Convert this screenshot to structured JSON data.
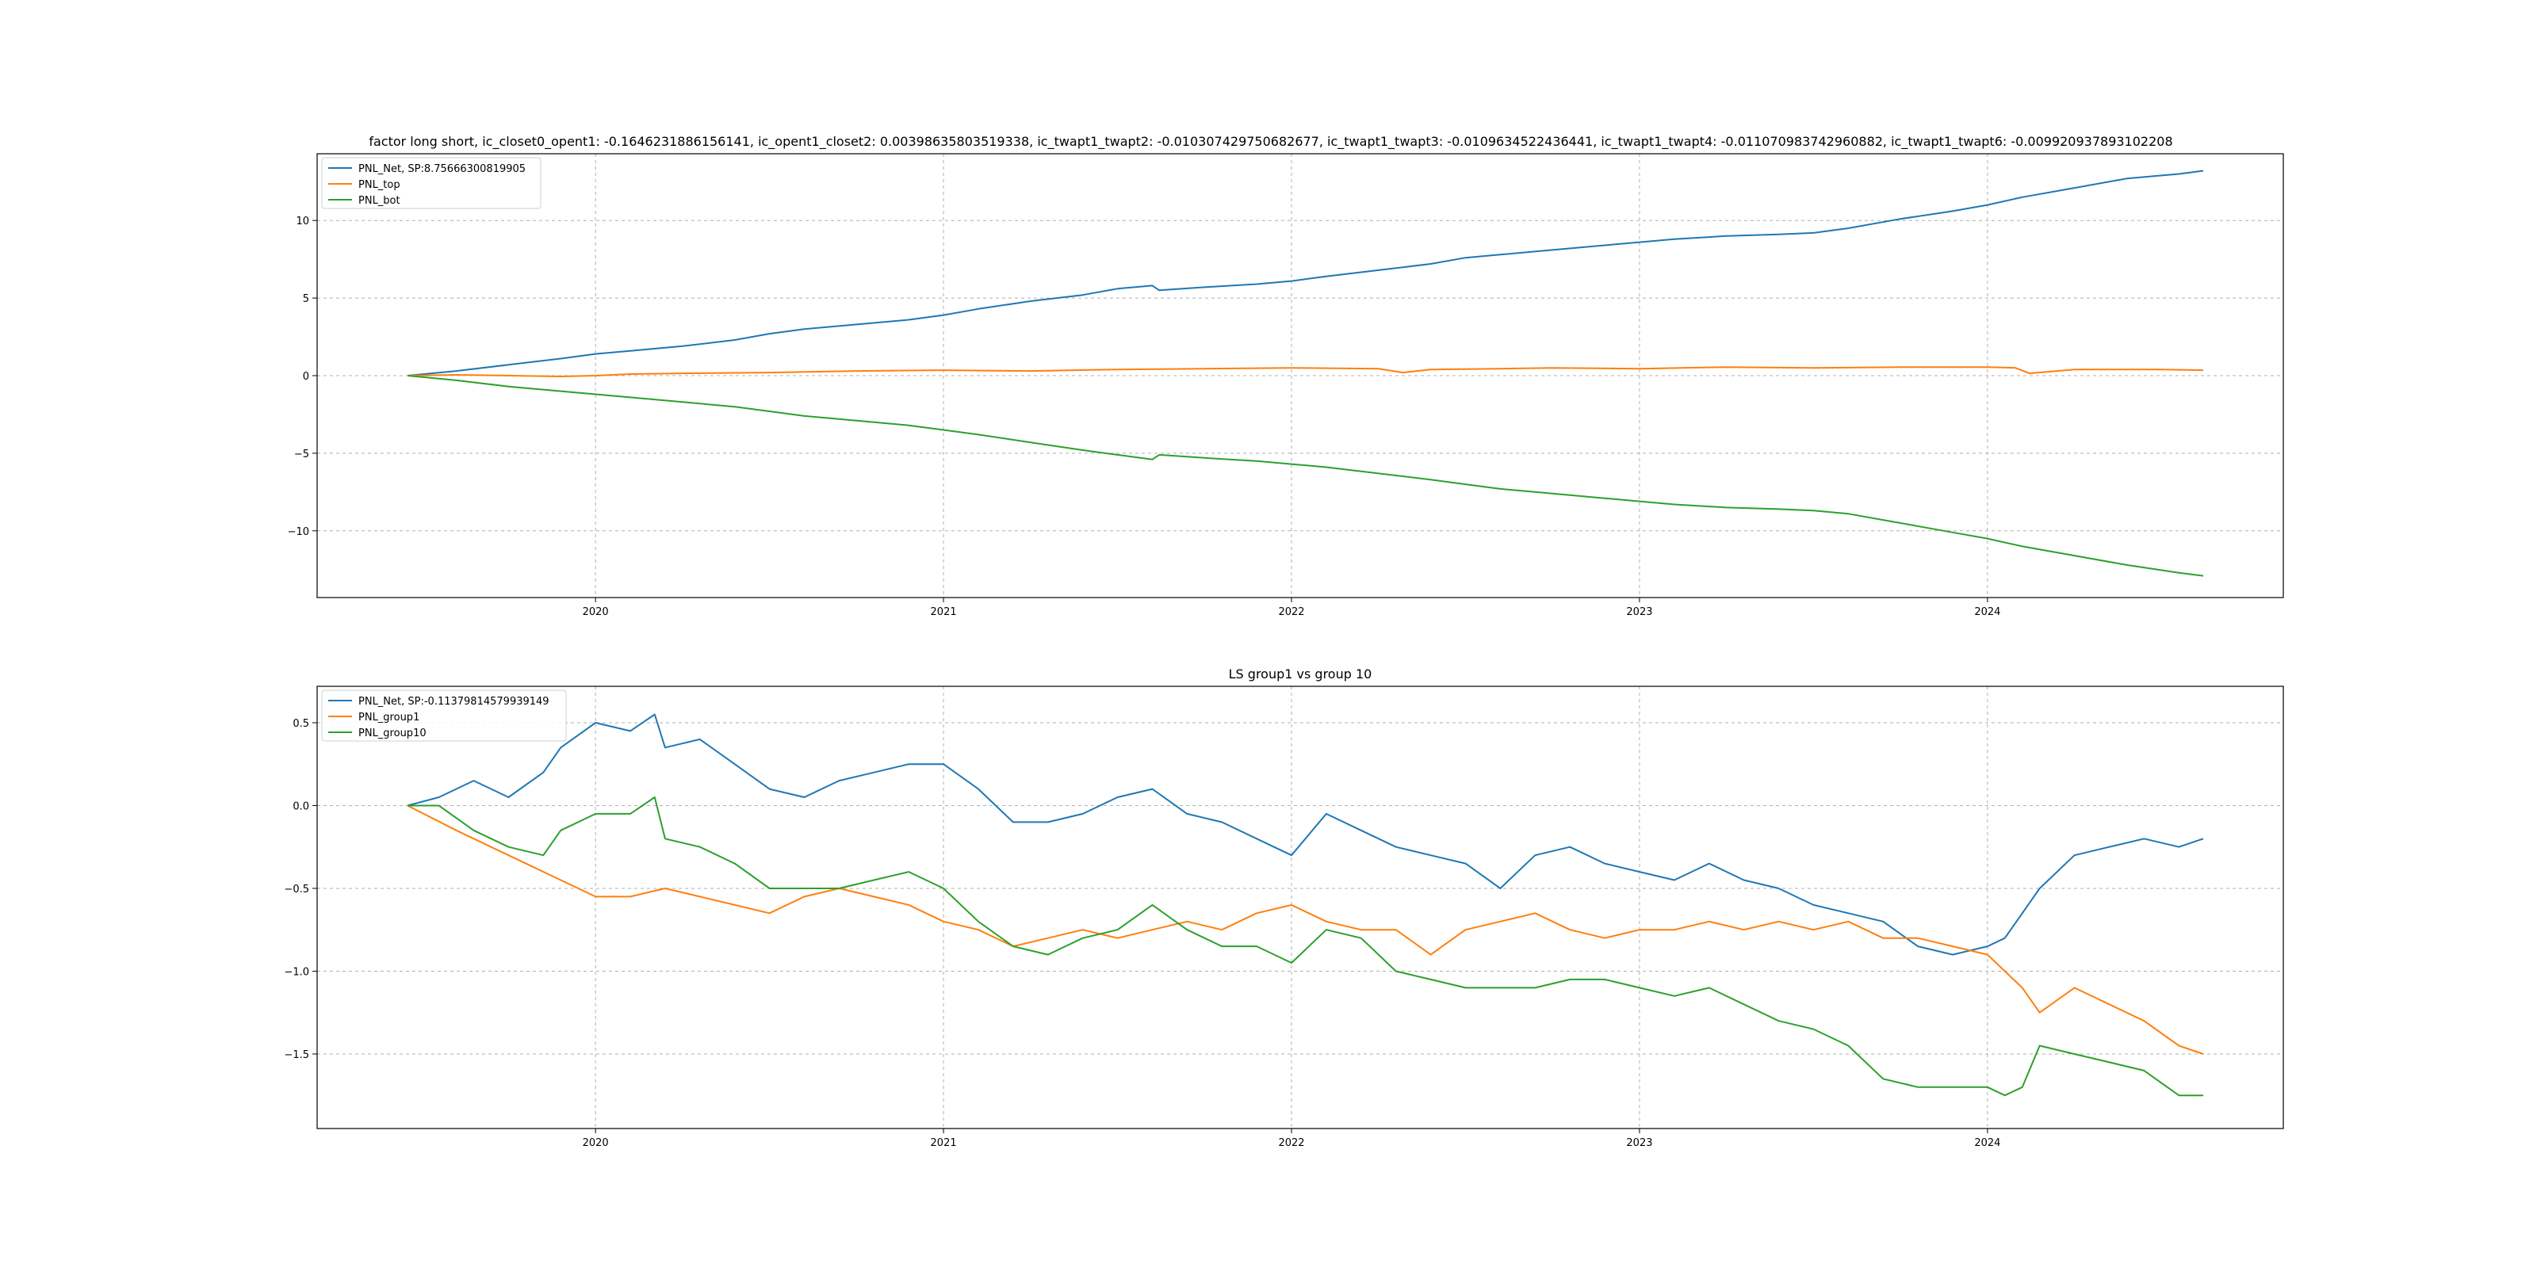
{
  "figure": {
    "background": "#ffffff"
  },
  "colors": {
    "blue": "#1f77b4",
    "orange": "#ff7f0e",
    "green": "#2ca02c",
    "grid": "#b0b0b0"
  },
  "chart_data": [
    {
      "type": "line",
      "title": "factor long short, ic_closet0_opent1: -0.1646231886156141, ic_opent1_closet2: 0.00398635803519338, ic_twapt1_twapt2: -0.010307429750682677, ic_twapt1_twapt3: -0.0109634522436441, ic_twapt1_twapt4: -0.011070983742960882, ic_twapt1_twapt6: -0.009920937893102208",
      "xlabel": "",
      "ylabel": "",
      "xlim": [
        2019.2,
        2024.85
      ],
      "ylim": [
        -14.3,
        14.3
      ],
      "x_ticks": [
        2020,
        2021,
        2022,
        2023,
        2024
      ],
      "x_tick_labels": [
        "2020",
        "2021",
        "2022",
        "2023",
        "2024"
      ],
      "y_ticks": [
        -10,
        -5,
        0,
        5,
        10
      ],
      "y_tick_labels": [
        "−10",
        "−5",
        "0",
        "5",
        "10"
      ],
      "grid": true,
      "legend_position": "top-left",
      "series": [
        {
          "name": "PNL_Net, SP:8.75666300819905",
          "color": "#1f77b4",
          "x": [
            2019.46,
            2019.6,
            2019.75,
            2019.9,
            2020.0,
            2020.1,
            2020.25,
            2020.4,
            2020.5,
            2020.6,
            2020.75,
            2020.9,
            2021.0,
            2021.1,
            2021.25,
            2021.4,
            2021.5,
            2021.6,
            2021.62,
            2021.75,
            2021.9,
            2022.0,
            2022.1,
            2022.25,
            2022.4,
            2022.5,
            2022.6,
            2022.75,
            2022.9,
            2023.0,
            2023.1,
            2023.25,
            2023.4,
            2023.5,
            2023.6,
            2023.75,
            2023.9,
            2024.0,
            2024.1,
            2024.25,
            2024.4,
            2024.55,
            2024.62
          ],
          "y": [
            0,
            0.3,
            0.7,
            1.1,
            1.4,
            1.6,
            1.9,
            2.3,
            2.7,
            3.0,
            3.3,
            3.6,
            3.9,
            4.3,
            4.8,
            5.2,
            5.6,
            5.8,
            5.5,
            5.7,
            5.9,
            6.1,
            6.4,
            6.8,
            7.2,
            7.6,
            7.8,
            8.1,
            8.4,
            8.6,
            8.8,
            9.0,
            9.1,
            9.2,
            9.5,
            10.1,
            10.6,
            11.0,
            11.5,
            12.1,
            12.7,
            13.0,
            13.2
          ]
        },
        {
          "name": "PNL_top",
          "color": "#ff7f0e",
          "x": [
            2019.46,
            2019.6,
            2019.75,
            2019.9,
            2020.0,
            2020.1,
            2020.25,
            2020.5,
            2020.75,
            2021.0,
            2021.25,
            2021.5,
            2021.75,
            2022.0,
            2022.25,
            2022.32,
            2022.4,
            2022.6,
            2022.75,
            2023.0,
            2023.25,
            2023.5,
            2023.75,
            2024.0,
            2024.08,
            2024.12,
            2024.25,
            2024.5,
            2024.62
          ],
          "y": [
            0,
            0.05,
            0.0,
            -0.05,
            0.0,
            0.1,
            0.15,
            0.2,
            0.3,
            0.35,
            0.3,
            0.4,
            0.45,
            0.5,
            0.45,
            0.2,
            0.4,
            0.45,
            0.5,
            0.45,
            0.55,
            0.5,
            0.55,
            0.55,
            0.5,
            0.15,
            0.4,
            0.4,
            0.35
          ]
        },
        {
          "name": "PNL_bot",
          "color": "#2ca02c",
          "x": [
            2019.46,
            2019.6,
            2019.75,
            2019.9,
            2020.0,
            2020.1,
            2020.25,
            2020.4,
            2020.5,
            2020.6,
            2020.75,
            2020.9,
            2021.0,
            2021.1,
            2021.25,
            2021.4,
            2021.5,
            2021.6,
            2021.62,
            2021.75,
            2021.9,
            2022.0,
            2022.1,
            2022.25,
            2022.4,
            2022.5,
            2022.6,
            2022.75,
            2022.9,
            2023.0,
            2023.1,
            2023.25,
            2023.4,
            2023.5,
            2023.6,
            2023.75,
            2023.9,
            2024.0,
            2024.1,
            2024.25,
            2024.4,
            2024.55,
            2024.62
          ],
          "y": [
            0,
            -0.3,
            -0.7,
            -1.0,
            -1.2,
            -1.4,
            -1.7,
            -2.0,
            -2.3,
            -2.6,
            -2.9,
            -3.2,
            -3.5,
            -3.8,
            -4.3,
            -4.8,
            -5.1,
            -5.4,
            -5.1,
            -5.3,
            -5.5,
            -5.7,
            -5.9,
            -6.3,
            -6.7,
            -7.0,
            -7.3,
            -7.6,
            -7.9,
            -8.1,
            -8.3,
            -8.5,
            -8.6,
            -8.7,
            -8.9,
            -9.5,
            -10.1,
            -10.5,
            -11.0,
            -11.6,
            -12.2,
            -12.7,
            -12.9
          ]
        }
      ]
    },
    {
      "type": "line",
      "title": "LS group1 vs group 10",
      "xlabel": "",
      "ylabel": "",
      "xlim": [
        2019.2,
        2024.85
      ],
      "ylim": [
        -1.95,
        0.72
      ],
      "x_ticks": [
        2020,
        2021,
        2022,
        2023,
        2024
      ],
      "x_tick_labels": [
        "2020",
        "2021",
        "2022",
        "2023",
        "2024"
      ],
      "y_ticks": [
        -1.5,
        -1.0,
        -0.5,
        0.0,
        0.5
      ],
      "y_tick_labels": [
        "−1.5",
        "−1.0",
        "−0.5",
        "0.0",
        "0.5"
      ],
      "grid": true,
      "legend_position": "top-left",
      "series": [
        {
          "name": "PNL_Net, SP:-0.11379814579939149",
          "color": "#1f77b4",
          "x": [
            2019.46,
            2019.55,
            2019.65,
            2019.75,
            2019.85,
            2019.9,
            2020.0,
            2020.1,
            2020.17,
            2020.2,
            2020.3,
            2020.4,
            2020.5,
            2020.6,
            2020.7,
            2020.8,
            2020.9,
            2021.0,
            2021.1,
            2021.2,
            2021.3,
            2021.4,
            2021.5,
            2021.6,
            2021.7,
            2021.8,
            2021.9,
            2022.0,
            2022.1,
            2022.2,
            2022.3,
            2022.4,
            2022.5,
            2022.6,
            2022.7,
            2022.8,
            2022.9,
            2023.0,
            2023.1,
            2023.2,
            2023.3,
            2023.4,
            2023.5,
            2023.6,
            2023.7,
            2023.8,
            2023.9,
            2024.0,
            2024.05,
            2024.15,
            2024.25,
            2024.35,
            2024.45,
            2024.55,
            2024.62
          ],
          "y": [
            0,
            0.05,
            0.15,
            0.05,
            0.2,
            0.35,
            0.5,
            0.45,
            0.55,
            0.35,
            0.4,
            0.25,
            0.1,
            0.05,
            0.15,
            0.2,
            0.25,
            0.25,
            0.1,
            -0.1,
            -0.1,
            -0.05,
            0.05,
            0.1,
            -0.05,
            -0.1,
            -0.2,
            -0.3,
            -0.05,
            -0.15,
            -0.25,
            -0.3,
            -0.35,
            -0.5,
            -0.3,
            -0.25,
            -0.35,
            -0.4,
            -0.45,
            -0.35,
            -0.45,
            -0.5,
            -0.6,
            -0.65,
            -0.7,
            -0.85,
            -0.9,
            -0.85,
            -0.8,
            -0.5,
            -0.3,
            -0.25,
            -0.2,
            -0.25,
            -0.2
          ]
        },
        {
          "name": "PNL_group1",
          "color": "#ff7f0e",
          "x": [
            2019.46,
            2019.6,
            2019.75,
            2019.9,
            2020.0,
            2020.1,
            2020.2,
            2020.3,
            2020.4,
            2020.5,
            2020.6,
            2020.7,
            2020.8,
            2020.9,
            2021.0,
            2021.1,
            2021.2,
            2021.3,
            2021.4,
            2021.5,
            2021.6,
            2021.7,
            2021.8,
            2021.9,
            2022.0,
            2022.1,
            2022.2,
            2022.3,
            2022.4,
            2022.5,
            2022.6,
            2022.7,
            2022.8,
            2022.9,
            2023.0,
            2023.1,
            2023.2,
            2023.3,
            2023.4,
            2023.5,
            2023.6,
            2023.7,
            2023.8,
            2023.9,
            2024.0,
            2024.05,
            2024.1,
            2024.15,
            2024.25,
            2024.35,
            2024.45,
            2024.55,
            2024.62
          ],
          "y": [
            0,
            -0.15,
            -0.3,
            -0.45,
            -0.55,
            -0.55,
            -0.5,
            -0.55,
            -0.6,
            -0.65,
            -0.55,
            -0.5,
            -0.55,
            -0.6,
            -0.7,
            -0.75,
            -0.85,
            -0.8,
            -0.75,
            -0.8,
            -0.75,
            -0.7,
            -0.75,
            -0.65,
            -0.6,
            -0.7,
            -0.75,
            -0.75,
            -0.9,
            -0.75,
            -0.7,
            -0.65,
            -0.75,
            -0.8,
            -0.75,
            -0.75,
            -0.7,
            -0.75,
            -0.7,
            -0.75,
            -0.7,
            -0.8,
            -0.8,
            -0.85,
            -0.9,
            -1.0,
            -1.1,
            -1.25,
            -1.1,
            -1.2,
            -1.3,
            -1.45,
            -1.5
          ]
        },
        {
          "name": "PNL_group10",
          "color": "#2ca02c",
          "x": [
            2019.46,
            2019.55,
            2019.65,
            2019.75,
            2019.85,
            2019.9,
            2020.0,
            2020.1,
            2020.17,
            2020.2,
            2020.3,
            2020.4,
            2020.5,
            2020.6,
            2020.7,
            2020.8,
            2020.9,
            2021.0,
            2021.1,
            2021.2,
            2021.3,
            2021.4,
            2021.5,
            2021.6,
            2021.7,
            2021.8,
            2021.9,
            2022.0,
            2022.1,
            2022.2,
            2022.3,
            2022.4,
            2022.5,
            2022.6,
            2022.7,
            2022.8,
            2022.9,
            2023.0,
            2023.1,
            2023.2,
            2023.3,
            2023.4,
            2023.5,
            2023.6,
            2023.7,
            2023.8,
            2023.9,
            2024.0,
            2024.05,
            2024.1,
            2024.15,
            2024.25,
            2024.35,
            2024.45,
            2024.55,
            2024.62
          ],
          "y": [
            0,
            0.0,
            -0.15,
            -0.25,
            -0.3,
            -0.15,
            -0.05,
            -0.05,
            0.05,
            -0.2,
            -0.25,
            -0.35,
            -0.5,
            -0.5,
            -0.5,
            -0.45,
            -0.4,
            -0.5,
            -0.7,
            -0.85,
            -0.9,
            -0.8,
            -0.75,
            -0.6,
            -0.75,
            -0.85,
            -0.85,
            -0.95,
            -0.75,
            -0.8,
            -1.0,
            -1.05,
            -1.1,
            -1.1,
            -1.1,
            -1.05,
            -1.05,
            -1.1,
            -1.15,
            -1.1,
            -1.2,
            -1.3,
            -1.35,
            -1.45,
            -1.65,
            -1.7,
            -1.7,
            -1.7,
            -1.75,
            -1.7,
            -1.45,
            -1.5,
            -1.55,
            -1.6,
            -1.75,
            -1.75
          ]
        }
      ]
    }
  ]
}
